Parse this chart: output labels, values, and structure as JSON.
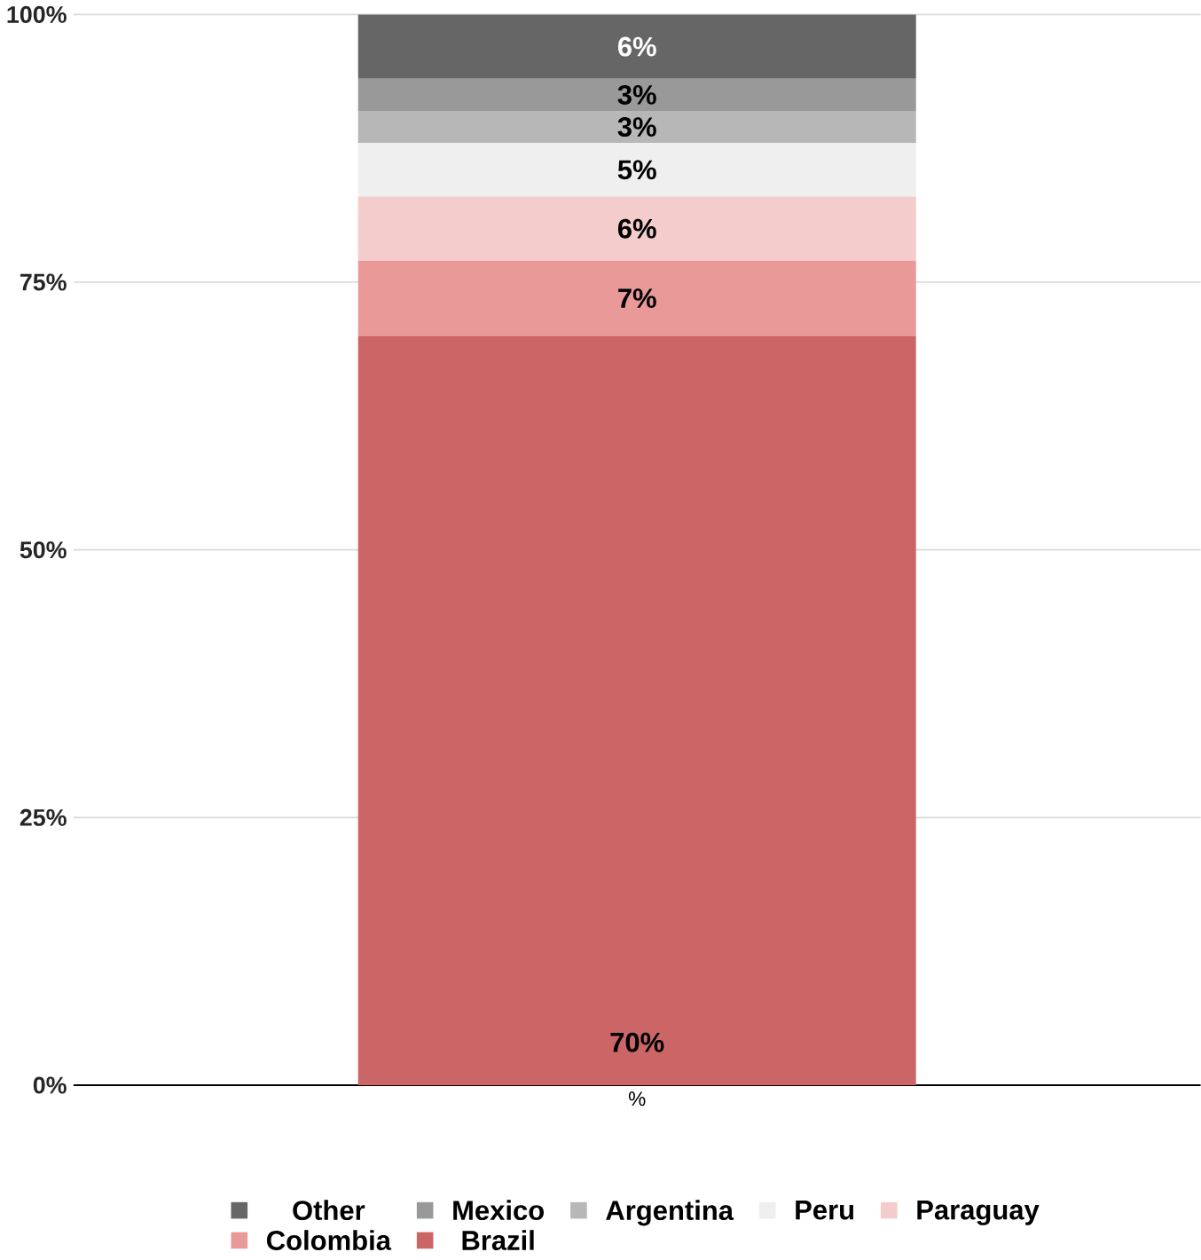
{
  "chart_data": {
    "type": "bar",
    "stacked": true,
    "categories": [
      "%"
    ],
    "series": [
      {
        "name": "Brazil",
        "color": "#cc6666",
        "values": [
          70
        ],
        "value_labels": [
          "70%"
        ]
      },
      {
        "name": "Colombia",
        "color": "#ea9999",
        "values": [
          7
        ],
        "value_labels": [
          "7%"
        ]
      },
      {
        "name": "Paraguay",
        "color": "#f4cccc",
        "values": [
          6
        ],
        "value_labels": [
          "6%"
        ]
      },
      {
        "name": "Peru",
        "color": "#efefef",
        "values": [
          5
        ],
        "value_labels": [
          "5%"
        ]
      },
      {
        "name": "Argentina",
        "color": "#b7b7b7",
        "values": [
          3
        ],
        "value_labels": [
          "3%"
        ]
      },
      {
        "name": "Mexico",
        "color": "#999999",
        "values": [
          3
        ],
        "value_labels": [
          "3%"
        ]
      },
      {
        "name": "Other",
        "color": "#666666",
        "values": [
          6
        ],
        "value_labels": [
          "6%"
        ]
      }
    ],
    "ylim": [
      0,
      100
    ],
    "yticks": [
      {
        "value": 0,
        "label": "0%"
      },
      {
        "value": 25,
        "label": "25%"
      },
      {
        "value": 50,
        "label": "50%"
      },
      {
        "value": 75,
        "label": "75%"
      },
      {
        "value": 100,
        "label": "100%"
      }
    ],
    "grid": "y",
    "legend": "bottom"
  }
}
